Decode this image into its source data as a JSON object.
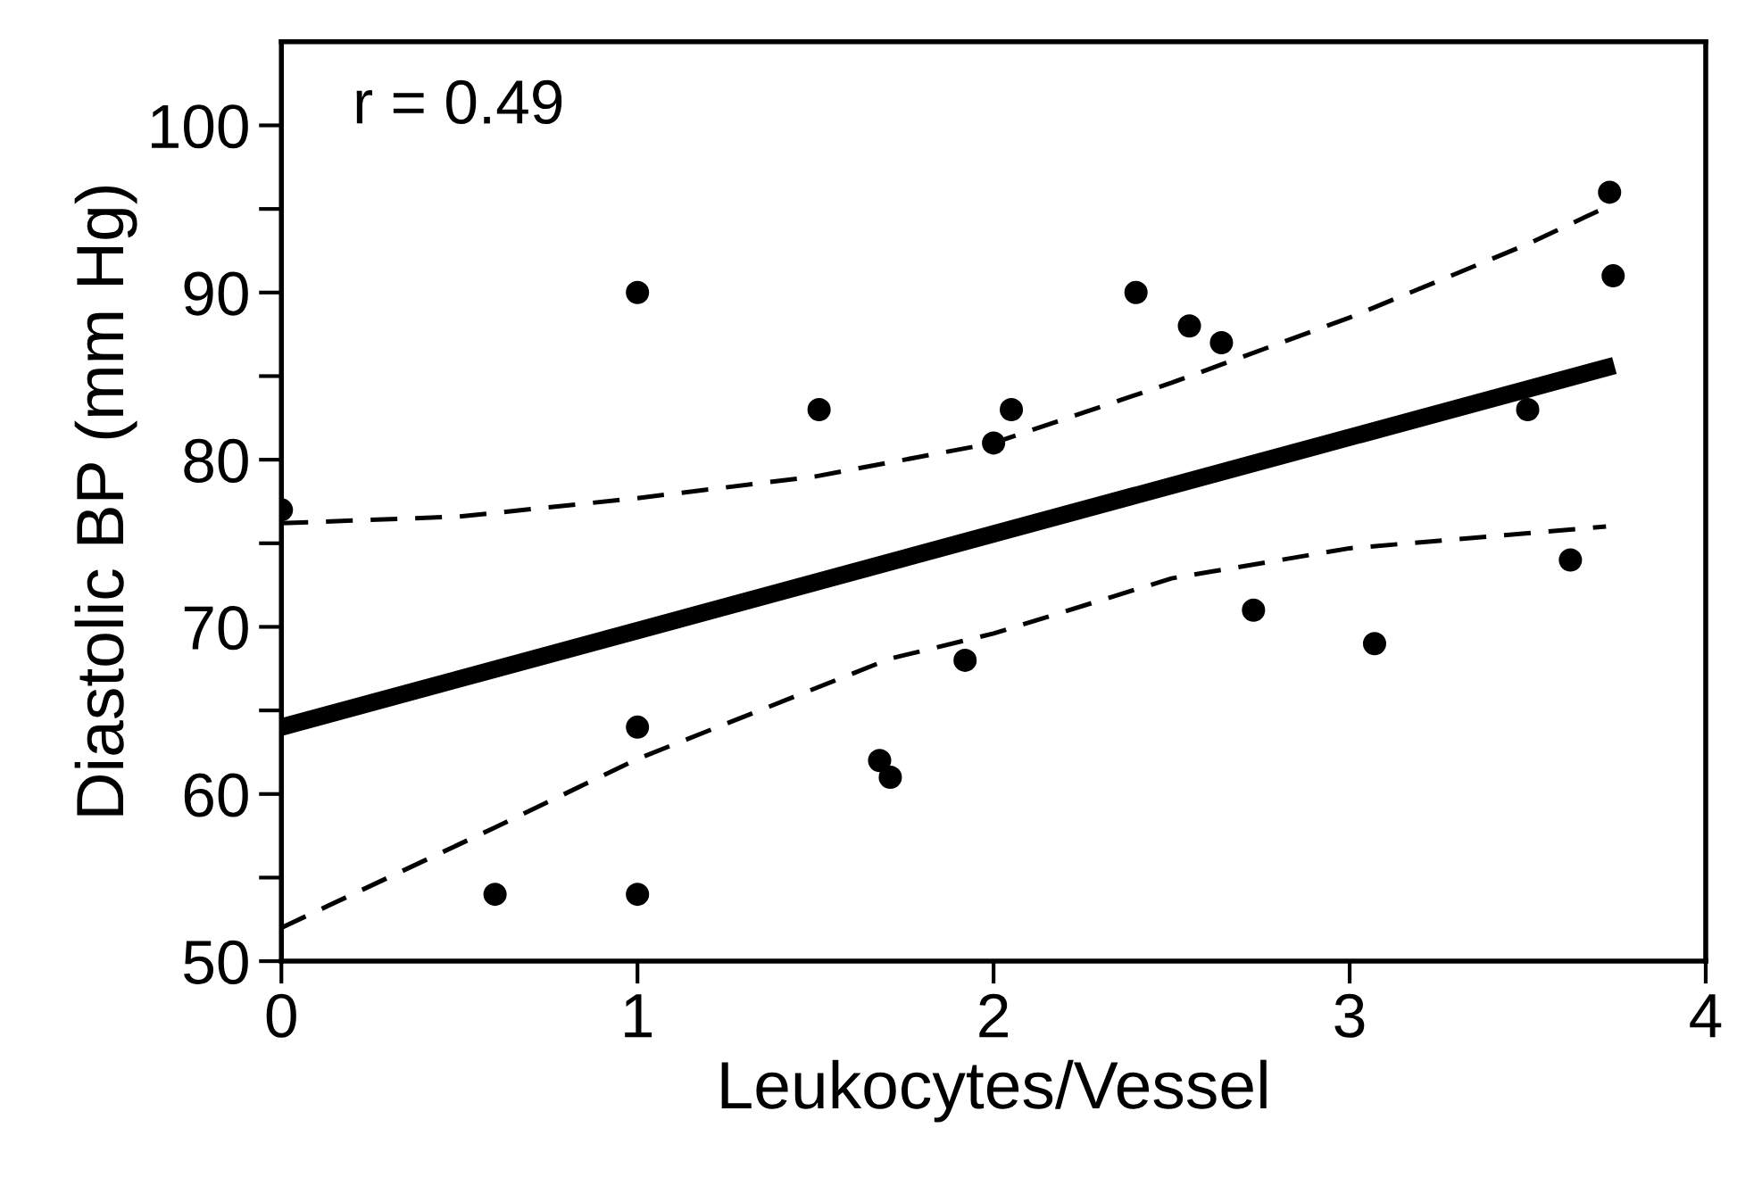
{
  "chart_data": {
    "type": "scatter",
    "xlabel": "Leukocytes/Vessel",
    "ylabel": "Diastolic BP (mm Hg)",
    "annotations": [
      "r = 0.49"
    ],
    "xlim": [
      0,
      4
    ],
    "xticks": [
      0,
      1,
      2,
      3,
      4
    ],
    "ylim": [
      50,
      105
    ],
    "yticks": [
      50,
      {
        "value": 55,
        "label": null
      },
      60,
      {
        "value": 65,
        "label": null
      },
      70,
      {
        "value": 75,
        "label": null
      },
      80,
      {
        "value": 85,
        "label": null
      },
      90,
      {
        "value": 95,
        "label": null
      },
      100
    ],
    "grid": false,
    "legend": false,
    "series": [
      {
        "color": "#000000",
        "marker": "circle",
        "x": [
          0,
          0.6,
          1,
          1,
          1,
          1.51,
          1.68,
          1.71,
          1.92,
          2.0,
          2.05,
          2.4,
          2.55,
          2.64,
          2.73,
          3.07,
          3.5,
          3.62,
          3.73,
          3.74
        ],
        "values": [
          77,
          54,
          90,
          64,
          54,
          83,
          62,
          61,
          68,
          81,
          83,
          90,
          88,
          87,
          71,
          69,
          83,
          74,
          96,
          91
        ]
      },
      {
        "type": "line",
        "color": "#000000",
        "line_style": "solid",
        "marker": "none",
        "x": [
          0,
          3.72
        ],
        "values": [
          64,
          85.5
        ]
      },
      {
        "type": "line",
        "color": "#000000",
        "line_style": "dashed",
        "marker": "none",
        "x": [
          0,
          0.5,
          1,
          1.5,
          2,
          2.5,
          3,
          3.5,
          3.72
        ],
        "values": [
          76.2,
          76.6,
          77.7,
          79,
          81,
          84.6,
          88.5,
          92.9,
          95.1
        ]
      },
      {
        "type": "line",
        "color": "#000000",
        "line_style": "dashed",
        "marker": "none",
        "x": [
          0,
          0.6,
          1,
          1.71,
          2,
          2.5,
          3,
          3.72
        ],
        "values": [
          52,
          58,
          62.1,
          68.1,
          69.6,
          72.9,
          74.7,
          76
        ]
      }
    ]
  }
}
